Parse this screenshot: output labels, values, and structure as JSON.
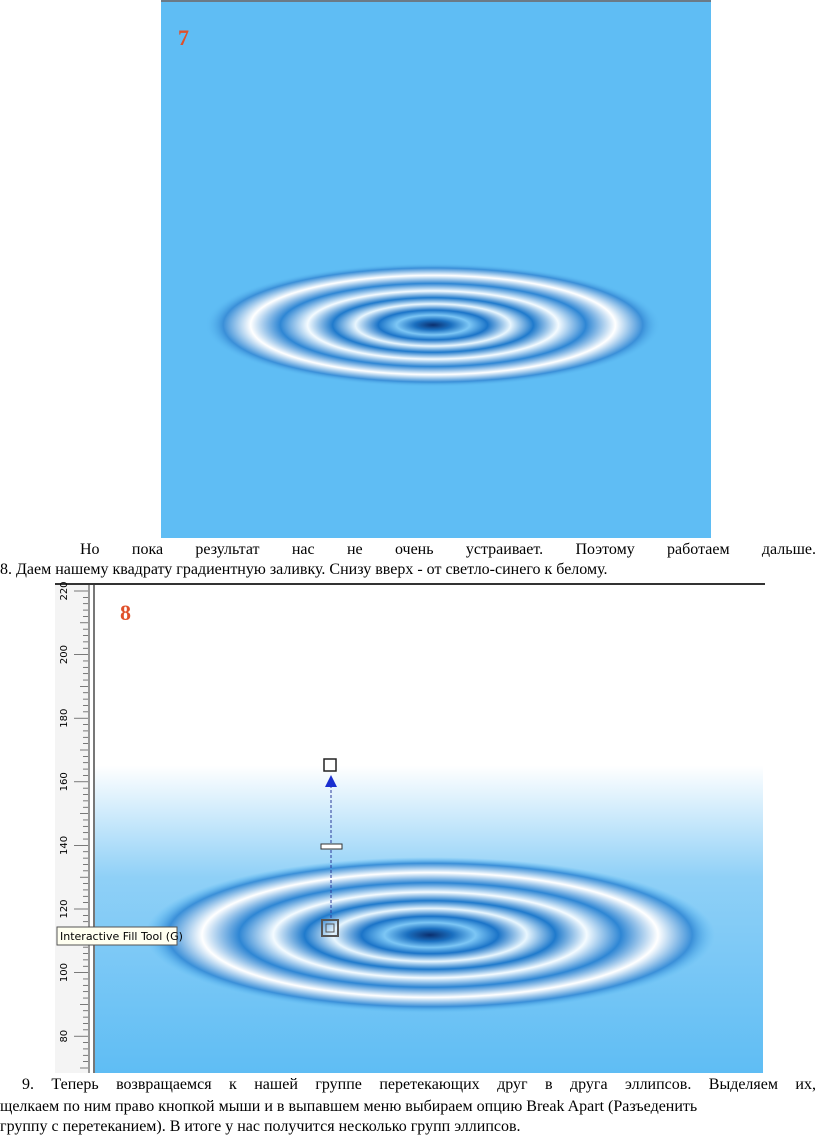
{
  "figure_1": {
    "label": "7"
  },
  "paragraph_1": {
    "lines": [
      "Но пока результат нас не очень устраивает. Поэтому работаем дальше.",
      "8. Даем нашему квадрату градиентную заливку. Снизу вверх - от светло-синего к белому."
    ]
  },
  "figure_2": {
    "label": "8",
    "ruler_ticks": [
      "220",
      "200",
      "180",
      "160",
      "140",
      "120",
      "100",
      "80"
    ],
    "tooltip": "Interactive Fill Tool (G)"
  },
  "paragraph_2": {
    "lines": [
      "9. Теперь возвращаемся к нашей группе перетекающих друг в друга эллипсов. Выделяем их,",
      "щелкаем по ним право кнопкой мыши и в выпавшем меню выбираем опцию Break Apart (Разъеденить",
      "группу с перетеканием). В итоге у нас получится несколько групп эллипсов."
    ]
  }
}
